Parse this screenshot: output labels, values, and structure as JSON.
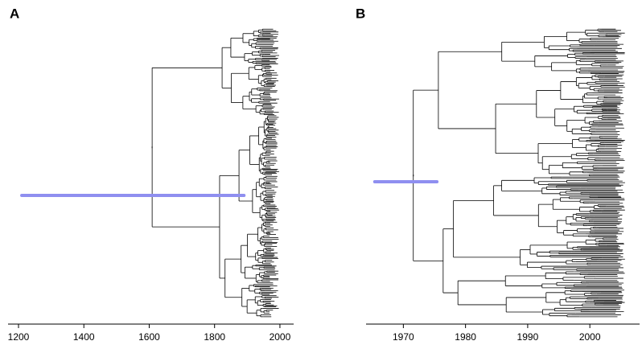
{
  "chart_data": [
    {
      "type": "tree",
      "label": "A",
      "xlim": [
        1168,
        2042
      ],
      "xticks": [
        1200,
        1400,
        1600,
        1800,
        2000
      ],
      "root": 1609,
      "interval": [
        1210,
        1890
      ],
      "interval_color": "#8f8ff0"
    },
    {
      "type": "tree",
      "label": "B",
      "xlim": [
        1964,
        2008
      ],
      "xticks": [
        1970,
        1980,
        1990,
        2000
      ],
      "root": 1971.6,
      "interval": [
        1965.4,
        1975.4
      ],
      "interval_color": "#8f8ff0"
    }
  ]
}
